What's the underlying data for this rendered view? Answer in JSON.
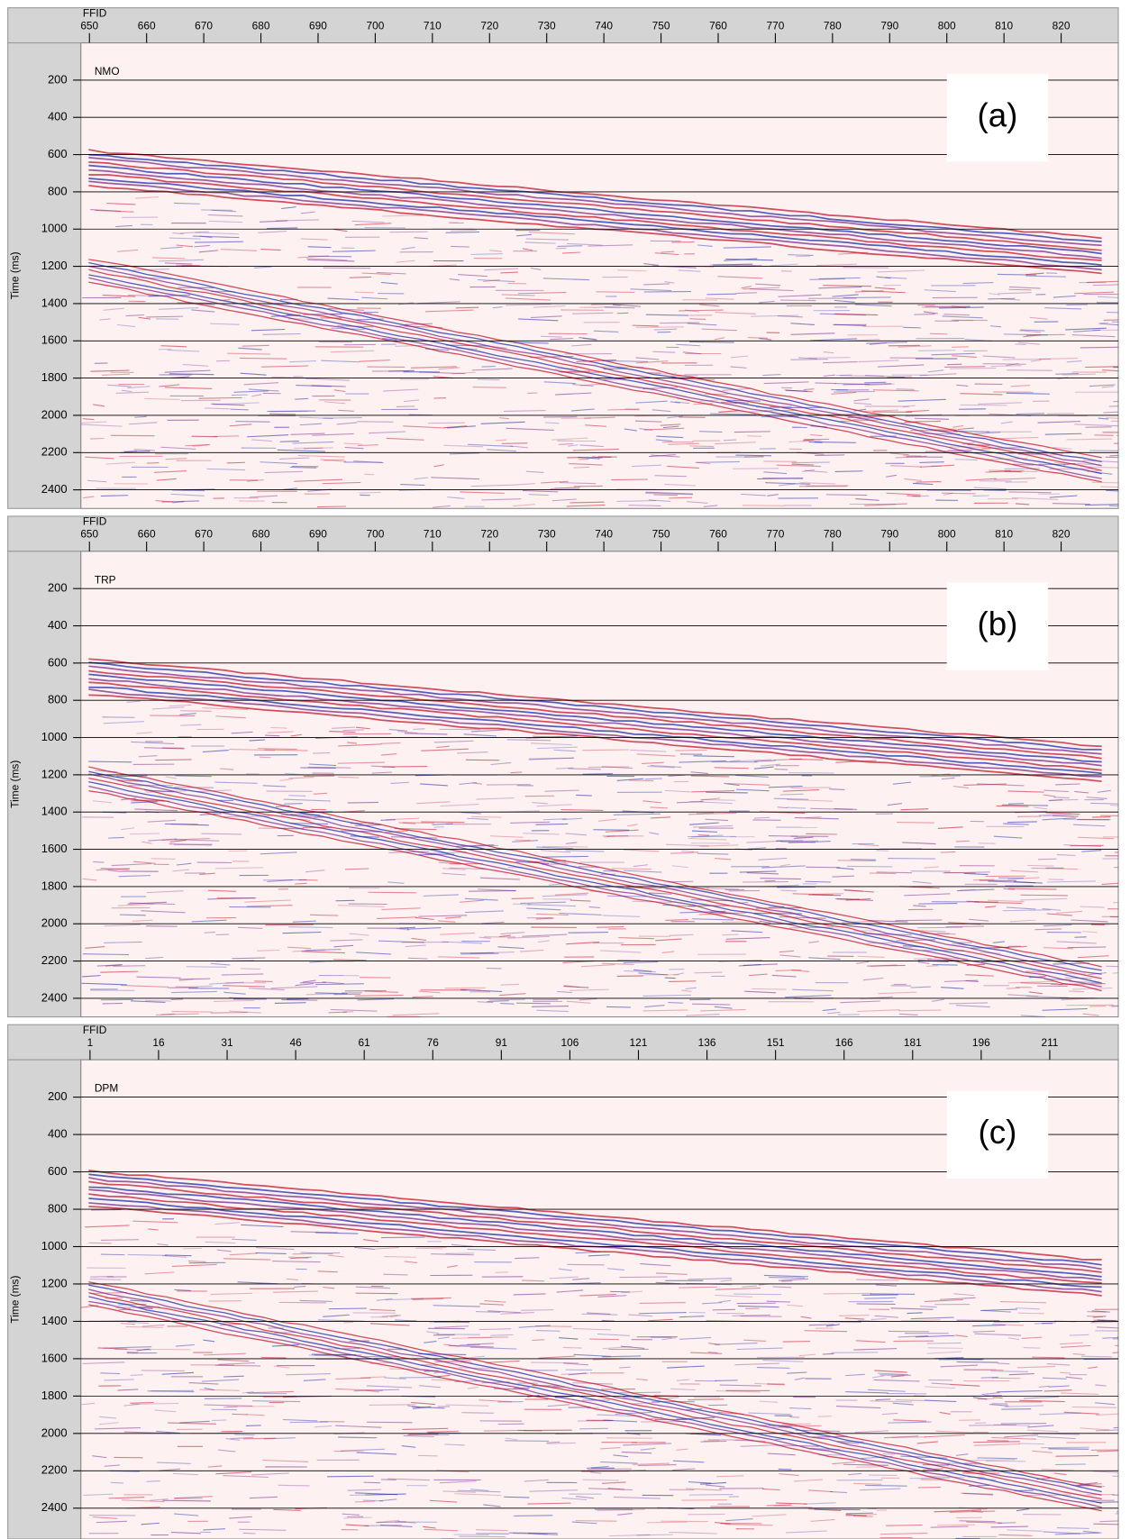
{
  "chart_data": [
    {
      "type": "seismic",
      "title": "NMO",
      "panel_label": "(a)",
      "x_label": "FFID",
      "y_label": "Time (ms)",
      "xlim": [
        648.5,
        830
      ],
      "xticks": [
        650,
        660,
        670,
        680,
        690,
        700,
        710,
        720,
        730,
        740,
        750,
        760,
        770,
        780,
        790,
        800,
        810,
        820
      ],
      "ylim": [
        0,
        2500
      ],
      "yticks": [
        200,
        400,
        600,
        800,
        1000,
        1200,
        1400,
        1600,
        1800,
        2000,
        2200,
        2400
      ],
      "y_inverted": true,
      "grid": true
    },
    {
      "type": "seismic",
      "title": "TRP",
      "panel_label": "(b)",
      "x_label": "FFID",
      "y_label": "Time (ms)",
      "xlim": [
        648.5,
        830
      ],
      "xticks": [
        650,
        660,
        670,
        680,
        690,
        700,
        710,
        720,
        730,
        740,
        750,
        760,
        770,
        780,
        790,
        800,
        810,
        820
      ],
      "ylim": [
        0,
        2500
      ],
      "yticks": [
        200,
        400,
        600,
        800,
        1000,
        1200,
        1400,
        1600,
        1800,
        2000,
        2200,
        2400
      ],
      "y_inverted": true,
      "grid": true
    },
    {
      "type": "seismic",
      "title": "DPM",
      "panel_label": "(c)",
      "x_label": "FFID",
      "y_label": "Time (ms)",
      "xlim": [
        -1,
        226
      ],
      "xticks": [
        1,
        16,
        31,
        46,
        61,
        76,
        91,
        106,
        121,
        136,
        151,
        166,
        181,
        196,
        211
      ],
      "ylim": [
        0,
        2565
      ],
      "yticks": [
        200,
        400,
        600,
        800,
        1000,
        1200,
        1400,
        1600,
        1800,
        2000,
        2200,
        2400
      ],
      "y_inverted": true,
      "grid": true
    }
  ]
}
